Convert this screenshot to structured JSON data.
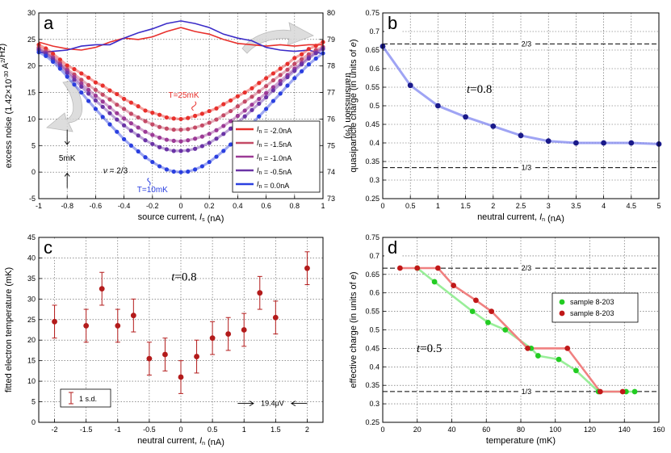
{
  "chart_data": [
    {
      "panel": "a",
      "type": "line",
      "label": "a",
      "xlabel": "source current, I_s (nA)",
      "ylabel": "excess noise (1.42×10^-30 A^2/Hz)",
      "ylabel_right": "transmission (%)",
      "xlim": [
        -1,
        1
      ],
      "ylim": [
        -5,
        30
      ],
      "y2lim": [
        73,
        80
      ],
      "xticks": [
        "-1",
        "-0.8",
        "-0.6",
        "-0.4",
        "-0.2",
        "0",
        "0.2",
        "0.4",
        "0.6",
        "0.8",
        "1"
      ],
      "yticks": [
        "-5",
        "0",
        "5",
        "10",
        "15",
        "20",
        "25",
        "30"
      ],
      "y2ticks": [
        "73",
        "74",
        "75",
        "76",
        "77",
        "78",
        "79",
        "80"
      ],
      "grid": true,
      "legend_position": "lower-right",
      "annotations": {
        "t_hot": "T=25mK",
        "t_cold": "T=10mK",
        "scale": "5mK",
        "nu": "ν = 2/3"
      },
      "series": [
        {
          "name": "I_n = -2.0nA",
          "color": "#e8302c",
          "offset": 10.0,
          "x": [
            -1.0,
            -0.95,
            -0.9,
            -0.85,
            -0.8,
            -0.75,
            -0.7,
            -0.65,
            -0.6,
            -0.55,
            -0.5,
            -0.45,
            -0.4,
            -0.35,
            -0.3,
            -0.25,
            -0.2,
            -0.15,
            -0.1,
            -0.05,
            0.0,
            0.05,
            0.1,
            0.15,
            0.2,
            0.25,
            0.3,
            0.35,
            0.4,
            0.45,
            0.5,
            0.55,
            0.6,
            0.65,
            0.7,
            0.75,
            0.8,
            0.85,
            0.9,
            0.95,
            1.0
          ],
          "y": [
            24.0,
            23.3,
            22.3,
            21.2,
            20.1,
            19.4,
            18.6,
            17.8,
            16.9,
            16.3,
            15.4,
            14.7,
            13.8,
            13.1,
            12.4,
            11.6,
            11.2,
            10.8,
            10.3,
            10.1,
            10.0,
            10.2,
            10.6,
            11.0,
            11.5,
            12.0,
            12.8,
            13.5,
            14.3,
            15.0,
            15.8,
            16.8,
            17.7,
            18.6,
            19.5,
            20.4,
            21.5,
            22.2,
            23.2,
            23.8,
            24.5
          ]
        },
        {
          "name": "I_n = -1.5nA",
          "color": "#c44a66",
          "offset": 8.0,
          "x": [
            -1.0,
            -0.95,
            -0.9,
            -0.85,
            -0.8,
            -0.75,
            -0.7,
            -0.65,
            -0.6,
            -0.55,
            -0.5,
            -0.45,
            -0.4,
            -0.35,
            -0.3,
            -0.25,
            -0.2,
            -0.15,
            -0.1,
            -0.05,
            0.0,
            0.05,
            0.1,
            0.15,
            0.2,
            0.25,
            0.3,
            0.35,
            0.4,
            0.45,
            0.5,
            0.55,
            0.6,
            0.65,
            0.7,
            0.75,
            0.8,
            0.85,
            0.9,
            0.95,
            1.0
          ],
          "y": [
            23.5,
            22.8,
            21.7,
            20.6,
            19.4,
            18.4,
            17.4,
            16.4,
            15.5,
            14.6,
            13.7,
            12.7,
            11.9,
            11.0,
            10.3,
            9.6,
            9.0,
            8.5,
            8.2,
            8.0,
            8.0,
            8.1,
            8.4,
            8.8,
            9.3,
            9.9,
            10.7,
            11.5,
            12.4,
            13.3,
            14.2,
            15.2,
            16.2,
            17.3,
            18.3,
            19.3,
            20.4,
            21.3,
            22.2,
            23.0,
            23.6
          ]
        },
        {
          "name": "I_n = -1.0nA",
          "color": "#9c3a96",
          "offset": 6.0,
          "x": [
            -1.0,
            -0.95,
            -0.9,
            -0.85,
            -0.8,
            -0.75,
            -0.7,
            -0.65,
            -0.6,
            -0.55,
            -0.5,
            -0.45,
            -0.4,
            -0.35,
            -0.3,
            -0.25,
            -0.2,
            -0.15,
            -0.1,
            -0.05,
            0.0,
            0.05,
            0.1,
            0.15,
            0.2,
            0.25,
            0.3,
            0.35,
            0.4,
            0.45,
            0.5,
            0.55,
            0.6,
            0.65,
            0.7,
            0.75,
            0.8,
            0.85,
            0.9,
            0.95,
            1.0
          ],
          "y": [
            23.2,
            22.5,
            21.5,
            20.3,
            19.1,
            17.9,
            16.7,
            15.5,
            14.4,
            13.3,
            12.2,
            11.1,
            10.1,
            9.2,
            8.4,
            7.6,
            7.0,
            6.5,
            6.1,
            5.9,
            5.8,
            6.0,
            6.3,
            6.7,
            7.2,
            7.9,
            8.7,
            9.6,
            10.6,
            11.6,
            12.7,
            13.8,
            14.9,
            16.0,
            17.2,
            18.3,
            19.5,
            20.6,
            21.7,
            22.6,
            23.4
          ]
        },
        {
          "name": "I_n = -0.5nA",
          "color": "#6a33a6",
          "offset": 4.0,
          "x": [
            -1.0,
            -0.95,
            -0.9,
            -0.85,
            -0.8,
            -0.75,
            -0.7,
            -0.65,
            -0.6,
            -0.55,
            -0.5,
            -0.45,
            -0.4,
            -0.35,
            -0.3,
            -0.25,
            -0.2,
            -0.15,
            -0.1,
            -0.05,
            0.0,
            0.05,
            0.1,
            0.15,
            0.2,
            0.25,
            0.3,
            0.35,
            0.4,
            0.45,
            0.5,
            0.55,
            0.6,
            0.65,
            0.7,
            0.75,
            0.8,
            0.85,
            0.9,
            0.95,
            1.0
          ],
          "y": [
            23.0,
            22.3,
            21.2,
            20.0,
            18.7,
            17.4,
            16.1,
            14.8,
            13.5,
            12.3,
            11.1,
            9.9,
            8.8,
            7.8,
            6.9,
            6.0,
            5.3,
            4.7,
            4.3,
            4.0,
            4.0,
            4.1,
            4.4,
            4.9,
            5.5,
            6.3,
            7.2,
            8.2,
            9.3,
            10.5,
            11.7,
            12.9,
            14.1,
            15.4,
            16.6,
            17.9,
            19.1,
            20.3,
            21.4,
            22.4,
            23.2
          ]
        },
        {
          "name": "I_n = 0.0nA",
          "color": "#2a3fe0",
          "offset": 0.0,
          "x": [
            -1.0,
            -0.95,
            -0.9,
            -0.85,
            -0.8,
            -0.75,
            -0.7,
            -0.65,
            -0.6,
            -0.55,
            -0.5,
            -0.45,
            -0.4,
            -0.35,
            -0.3,
            -0.25,
            -0.2,
            -0.15,
            -0.1,
            -0.05,
            0.0,
            0.05,
            0.1,
            0.15,
            0.2,
            0.25,
            0.3,
            0.35,
            0.4,
            0.45,
            0.5,
            0.55,
            0.6,
            0.65,
            0.7,
            0.75,
            0.8,
            0.85,
            0.9,
            0.95,
            1.0
          ],
          "y": [
            22.6,
            21.9,
            20.8,
            19.5,
            18.0,
            16.5,
            15.0,
            13.4,
            11.9,
            10.4,
            9.0,
            7.6,
            6.2,
            5.0,
            3.9,
            2.8,
            1.9,
            1.1,
            0.5,
            0.1,
            0.0,
            0.1,
            0.5,
            1.1,
            1.9,
            2.9,
            4.0,
            5.2,
            6.4,
            7.7,
            9.1,
            10.5,
            11.9,
            13.4,
            14.8,
            16.3,
            17.7,
            19.0,
            20.3,
            21.4,
            22.4
          ]
        }
      ],
      "transmission_series": [
        {
          "color": "#e8302c",
          "x": [
            -1.0,
            -0.9,
            -0.8,
            -0.7,
            -0.6,
            -0.5,
            -0.4,
            -0.3,
            -0.2,
            -0.1,
            0.0,
            0.1,
            0.2,
            0.3,
            0.4,
            0.5,
            0.6,
            0.7,
            0.8,
            0.9,
            1.0
          ],
          "y": [
            78.9,
            78.75,
            78.65,
            78.6,
            78.7,
            78.9,
            79.05,
            79.0,
            79.1,
            79.3,
            79.45,
            79.3,
            79.2,
            79.0,
            78.85,
            78.8,
            78.75,
            78.8,
            78.75,
            78.8,
            78.8
          ]
        },
        {
          "color": "#3b2cc8",
          "x": [
            -1.0,
            -0.9,
            -0.8,
            -0.7,
            -0.6,
            -0.5,
            -0.4,
            -0.3,
            -0.2,
            -0.1,
            0.0,
            0.1,
            0.2,
            0.3,
            0.4,
            0.5,
            0.6,
            0.7,
            0.8,
            0.9,
            1.0
          ],
          "y": [
            78.5,
            78.55,
            78.6,
            78.75,
            78.8,
            78.8,
            79.05,
            79.25,
            79.4,
            79.6,
            79.7,
            79.6,
            79.45,
            79.2,
            79.05,
            78.95,
            78.7,
            78.6,
            78.55,
            78.6,
            78.45
          ]
        }
      ]
    },
    {
      "panel": "b",
      "type": "line",
      "label": "b",
      "xlabel": "neutral current, I_n (nA)",
      "ylabel": "quasiparticle charge (in units of e)",
      "xlim": [
        0,
        5
      ],
      "ylim": [
        0.25,
        0.75
      ],
      "xticks": [
        "0",
        "0.5",
        "1",
        "1.5",
        "2",
        "2.5",
        "3",
        "3.5",
        "4",
        "4.5",
        "5"
      ],
      "yticks": [
        "0.25",
        "0.3",
        "0.35",
        "0.4",
        "0.45",
        "0.5",
        "0.55",
        "0.6",
        "0.65",
        "0.7",
        "0.75"
      ],
      "grid": true,
      "annotation": "t=0.8",
      "reference_lines": [
        {
          "value": 0.6667,
          "label": "2/3"
        },
        {
          "value": 0.3333,
          "label": "1/3"
        }
      ],
      "series": [
        {
          "name": "",
          "color": "#1a1a8a",
          "x": [
            0,
            0.5,
            1,
            1.5,
            2,
            2.5,
            3,
            3.5,
            4,
            4.5,
            5
          ],
          "y": [
            0.66,
            0.555,
            0.5,
            0.47,
            0.445,
            0.42,
            0.405,
            0.4,
            0.4,
            0.4,
            0.397
          ]
        }
      ]
    },
    {
      "panel": "c",
      "type": "scatter",
      "label": "c",
      "xlabel": "neutral current, I_n (nA)",
      "ylabel": "fitted electron temperature (mK)",
      "xlim": [
        -2.25,
        2.25
      ],
      "ylim": [
        0,
        45
      ],
      "xticks": [
        "-2",
        "-1.5",
        "-1",
        "-0.5",
        "0",
        "0.5",
        "1",
        "1.5",
        "2"
      ],
      "yticks": [
        "0",
        "5",
        "10",
        "15",
        "20",
        "25",
        "30",
        "35",
        "40",
        "45"
      ],
      "grid": true,
      "annotation": "t=0.8",
      "legend": "1 s.d.",
      "scale_annotation": "19.4μV",
      "series": [
        {
          "name": "",
          "color": "#b31b1b",
          "x": [
            -2,
            -1.5,
            -1.25,
            -1,
            -0.75,
            -0.5,
            -0.25,
            0,
            0.25,
            0.5,
            0.75,
            1,
            1.25,
            1.5,
            2
          ],
          "y": [
            24.5,
            23.5,
            32.5,
            23.5,
            26,
            15.5,
            16.5,
            11,
            16,
            20.5,
            21.5,
            22.5,
            31.5,
            25.5,
            37.5
          ],
          "err": [
            4,
            4,
            4,
            4,
            4,
            4,
            4,
            4,
            4,
            4,
            4,
            4,
            4,
            4,
            4
          ]
        }
      ]
    },
    {
      "panel": "d",
      "type": "line",
      "label": "d",
      "xlabel": "temperature (mK)",
      "ylabel": "effective charge (in units of e)",
      "xlim": [
        0,
        160
      ],
      "ylim": [
        0.25,
        0.75
      ],
      "xticks": [
        "0",
        "20",
        "40",
        "60",
        "80",
        "100",
        "120",
        "140",
        "160"
      ],
      "yticks": [
        "0.25",
        "0.3",
        "0.35",
        "0.4",
        "0.45",
        "0.5",
        "0.55",
        "0.6",
        "0.65",
        "0.7",
        "0.75"
      ],
      "grid": true,
      "annotation": "t=0.5",
      "legend_position": "right",
      "reference_lines": [
        {
          "value": 0.6667,
          "label": "2/3"
        },
        {
          "value": 0.3333,
          "label": "1/3"
        }
      ],
      "series": [
        {
          "name": "sample 8-203",
          "color": "#22cc22",
          "line": "#99ee99",
          "x": [
            20,
            30,
            52,
            61,
            71,
            86,
            90,
            102,
            112,
            125,
            141,
            146
          ],
          "y": [
            0.667,
            0.63,
            0.55,
            0.52,
            0.5,
            0.45,
            0.43,
            0.42,
            0.39,
            0.333,
            0.333,
            0.333
          ]
        },
        {
          "name": "sample 8-203",
          "color": "#c01818",
          "line": "#f08080",
          "x": [
            10,
            20,
            32,
            41,
            54,
            63,
            84,
            107,
            126,
            139
          ],
          "y": [
            0.667,
            0.667,
            0.667,
            0.62,
            0.58,
            0.55,
            0.45,
            0.45,
            0.333,
            0.333
          ]
        }
      ]
    }
  ]
}
